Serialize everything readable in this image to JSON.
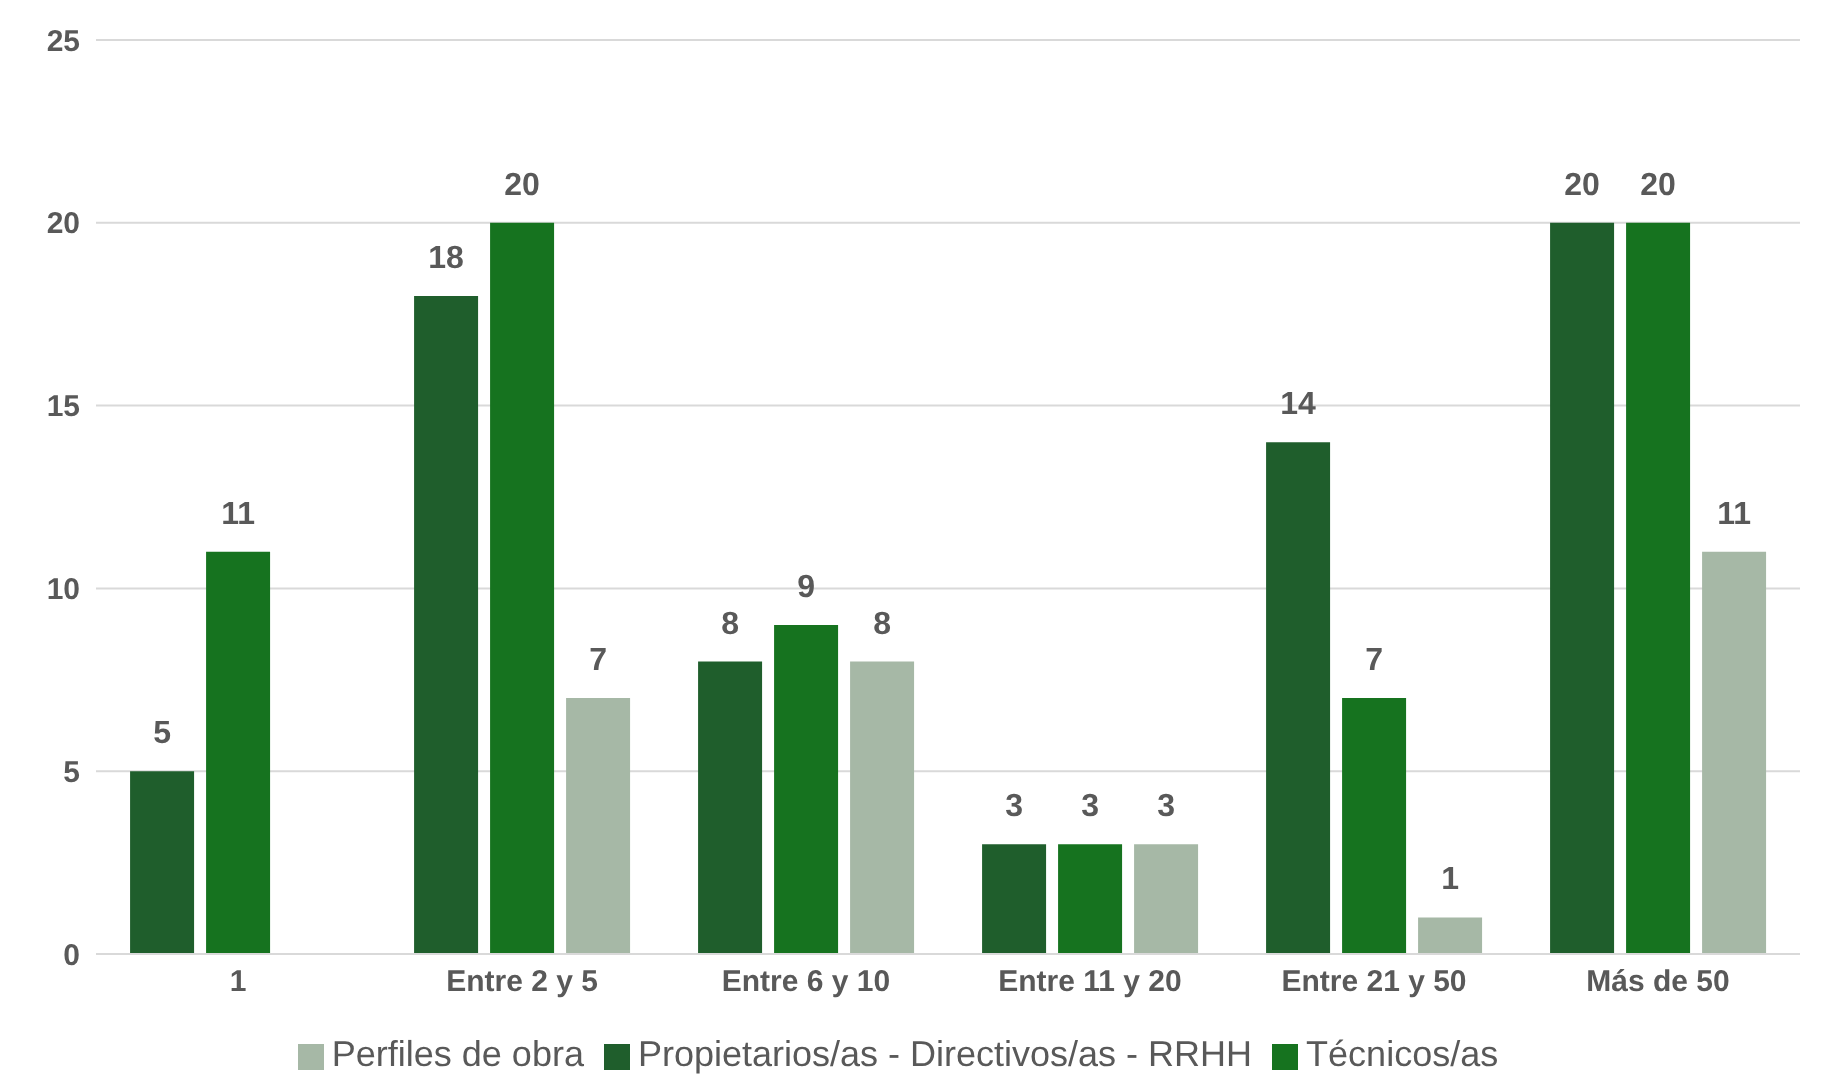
{
  "chart_data": {
    "type": "bar",
    "categories": [
      "1",
      "Entre 2 y 5",
      "Entre 6 y 10",
      "Entre 11 y 20",
      "Entre 21 y 50",
      "Más de 50"
    ],
    "series": [
      {
        "name": "Propietarios/as - Directivos/as - RRHH",
        "color": "#1f5e2c",
        "values": [
          5,
          18,
          8,
          3,
          14,
          20
        ]
      },
      {
        "name": "Técnicos/as",
        "color": "#16731f",
        "values": [
          11,
          20,
          9,
          3,
          7,
          20
        ]
      },
      {
        "name": "Perfiles de obra",
        "color": "#a6b8a6",
        "values": [
          null,
          7,
          8,
          3,
          1,
          11
        ]
      }
    ],
    "ylim": [
      0,
      25
    ],
    "yticks": [
      0,
      5,
      10,
      15,
      20,
      25
    ],
    "grid": "y",
    "legend": "bottom",
    "data_labels": true
  }
}
